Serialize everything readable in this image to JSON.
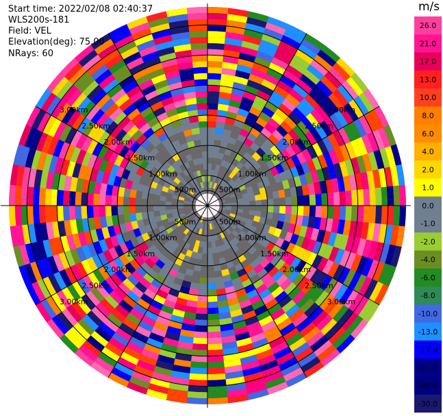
{
  "header": {
    "start_time": "Start time: 2022/02/08 02:40:37",
    "instrument": "WLS200s-181",
    "field": "Field: VEL",
    "elevation": "Elevation(deg): 75.00",
    "nrays": "NRays: 60"
  },
  "chart_data": {
    "type": "heatmap",
    "projection": "polar",
    "nrays": 60,
    "max_range_km": 3.3,
    "range_rings_km": [
      0.25,
      0.5,
      1.0,
      1.5,
      2.0,
      2.5,
      3.0
    ],
    "range_labels": [
      "500m",
      "1.00km",
      "1.50km",
      "2.00km",
      "2.50km",
      "3.00km"
    ],
    "colorbar": {
      "unit": "m/s",
      "levels": [
        "26.0",
        "21.0",
        "17.0",
        "13.0",
        "10.0",
        "8.0",
        "6.0",
        "4.0",
        "2.0",
        "1.0",
        "0.0",
        "-1.0",
        "-2.0",
        "-4.0",
        "-6.0",
        "-8.0",
        "-10.0",
        "-13.0",
        "-17.0",
        "-21.0",
        "-26.0",
        "-30.0"
      ],
      "colors": [
        "#ff3fa0",
        "#ff1493",
        "#e8005a",
        "#ff2020",
        "#ff4020",
        "#ff7f00",
        "#ff8c00",
        "#ffb000",
        "#ffd700",
        "#ffff00",
        "#708090",
        "#708090",
        "#9acd32",
        "#6b8e23",
        "#228b22",
        "#2e8b57",
        "#4169e1",
        "#1e90ff",
        "#0000ff",
        "#00008b",
        "#000080",
        "#191970"
      ]
    }
  }
}
